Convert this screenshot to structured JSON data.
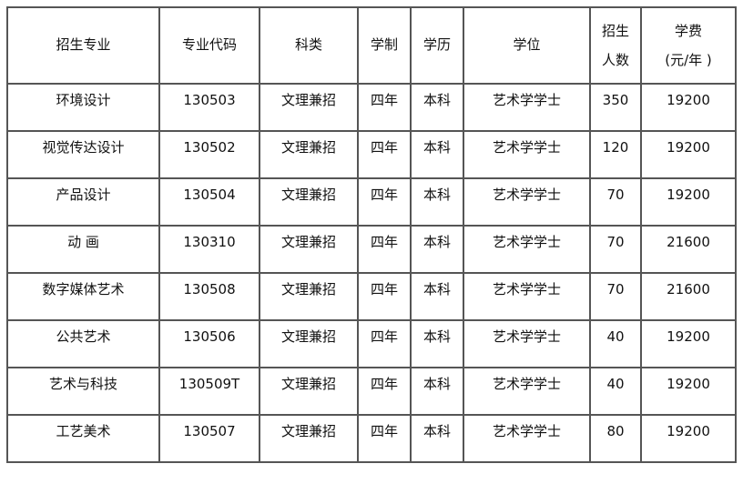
{
  "headers": [
    "招生专业",
    "专业代码",
    "科类",
    "学制",
    "学历",
    "学位",
    [
      "招生",
      "人数"
    ],
    [
      "学费",
      "(元/年 )"
    ]
  ],
  "rows": [
    [
      "环境设计",
      "130503",
      "文理兼招",
      "四年",
      "本科",
      "艺术学学士",
      "350",
      "19200"
    ],
    [
      "视觉传达设计",
      "130502",
      "文理兼招",
      "四年",
      "本科",
      "艺术学学士",
      "120",
      "19200"
    ],
    [
      "产品设计",
      "130504",
      "文理兼招",
      "四年",
      "本科",
      "艺术学学士",
      "70",
      "19200"
    ],
    [
      "动 画",
      "130310",
      "文理兼招",
      "四年",
      "本科",
      "艺术学学士",
      "70",
      "21600"
    ],
    [
      "数字媒体艺术",
      "130508",
      "文理兼招",
      "四年",
      "本科",
      "艺术学学士",
      "70",
      "21600"
    ],
    [
      "公共艺术",
      "130506",
      "文理兼招",
      "四年",
      "本科",
      "艺术学学士",
      "40",
      "19200"
    ],
    [
      "艺术与科技",
      "130509T",
      "文理兼招",
      "四年",
      "本科",
      "艺术学学士",
      "40",
      "19200"
    ],
    [
      "工艺美术",
      "130507",
      "文理兼招",
      "四年",
      "本科",
      "艺术学学士",
      "80",
      "19200"
    ]
  ]
}
